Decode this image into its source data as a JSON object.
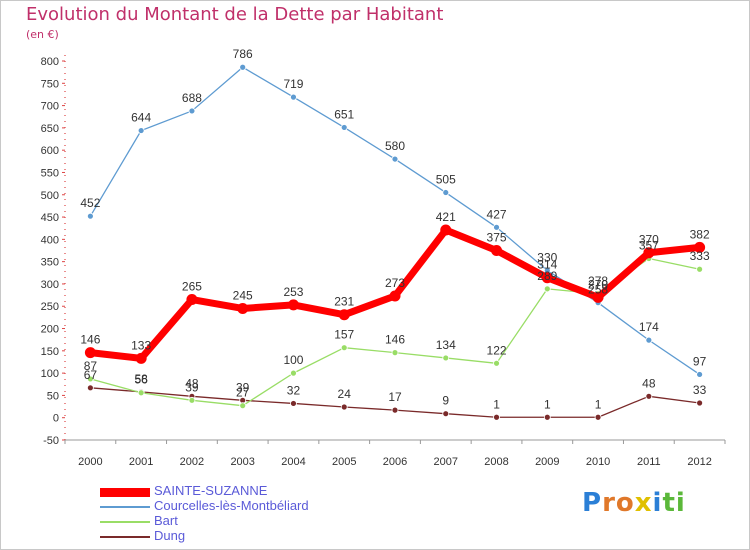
{
  "chart_data": {
    "type": "line",
    "title": "Evolution du Montant de la Dette par Habitant",
    "subtitle": "(en €)",
    "xlabel": "",
    "ylabel": "",
    "ylim": [
      -50,
      800
    ],
    "yticks": [
      -50,
      0,
      50,
      100,
      150,
      200,
      250,
      300,
      350,
      400,
      450,
      500,
      550,
      600,
      650,
      700,
      750,
      800
    ],
    "ytick_labels": [
      "-50",
      "0",
      "50",
      "100",
      "150",
      "200",
      "250",
      "300",
      "350",
      "400",
      "450",
      "500",
      "550",
      "600",
      "650",
      "700",
      "750",
      "800"
    ],
    "categories": [
      "2000",
      "2001",
      "2002",
      "2003",
      "2004",
      "2005",
      "2006",
      "2007",
      "2008",
      "2009",
      "2010",
      "2011",
      "2012"
    ],
    "grid": false,
    "legend_position": "bottom-left",
    "series": [
      {
        "name": "SAINTE-SUZANNE",
        "color": "#ff0000",
        "values": [
          146,
          133,
          265,
          245,
          253,
          231,
          273,
          421,
          375,
          314,
          270,
          370,
          382
        ]
      },
      {
        "name": "Courcelles-lès-Montbéliard",
        "color": "#5e9bd1",
        "values": [
          452,
          644,
          688,
          786,
          719,
          651,
          580,
          505,
          427,
          330,
          258,
          174,
          97
        ]
      },
      {
        "name": "Bart",
        "color": "#99dd66",
        "values": [
          87,
          56,
          39,
          27,
          100,
          157,
          146,
          134,
          122,
          289,
          278,
          357,
          333
        ]
      },
      {
        "name": "Dung",
        "color": "#7a2a2a",
        "values": [
          67,
          58,
          48,
          39,
          32,
          24,
          17,
          9,
          1,
          1,
          1,
          48,
          33
        ]
      }
    ]
  },
  "logo": {
    "letters": [
      "P",
      "r",
      "o",
      "x",
      "i",
      "t",
      "i"
    ],
    "colors": [
      "#2b7fd6",
      "#e0782a",
      "#e0782a",
      "#e0c000",
      "#2b7fd6",
      "#5bb83a",
      "#5bb83a"
    ]
  }
}
